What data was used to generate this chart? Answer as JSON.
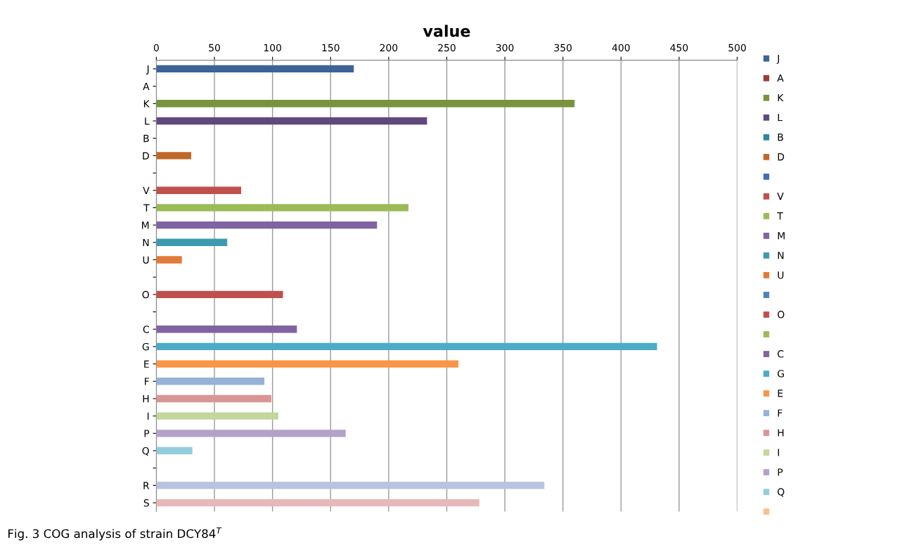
{
  "chart_data": {
    "type": "bar",
    "orientation": "horizontal",
    "title": "value",
    "categories": [
      "J",
      "A",
      "K",
      "L",
      "B",
      "D",
      null,
      "V",
      "T",
      "M",
      "N",
      "U",
      null,
      "O",
      null,
      "C",
      "G",
      "E",
      "F",
      "H",
      "I",
      "P",
      "Q",
      null,
      "R",
      "S"
    ],
    "series": [
      {
        "name": "J",
        "color": "#3c6496",
        "values": [
          170,
          null,
          null,
          null,
          null,
          null,
          null,
          null,
          null,
          null,
          null,
          null,
          null,
          null,
          null,
          null,
          null,
          null,
          null,
          null,
          null,
          null,
          null,
          null,
          null,
          null
        ]
      },
      {
        "name": "A",
        "color": "#9b3b38",
        "values": [
          null,
          0,
          null,
          null,
          null,
          null,
          null,
          null,
          null,
          null,
          null,
          null,
          null,
          null,
          null,
          null,
          null,
          null,
          null,
          null,
          null,
          null,
          null,
          null,
          null,
          null
        ]
      },
      {
        "name": "K",
        "color": "#77933c",
        "values": [
          null,
          null,
          360,
          null,
          null,
          null,
          null,
          null,
          null,
          null,
          null,
          null,
          null,
          null,
          null,
          null,
          null,
          null,
          null,
          null,
          null,
          null,
          null,
          null,
          null,
          null
        ]
      },
      {
        "name": "L",
        "color": "#604a7b",
        "values": [
          null,
          null,
          null,
          233,
          null,
          null,
          null,
          null,
          null,
          null,
          null,
          null,
          null,
          null,
          null,
          null,
          null,
          null,
          null,
          null,
          null,
          null,
          null,
          null,
          null,
          null
        ]
      },
      {
        "name": "B",
        "color": "#31859c",
        "values": [
          null,
          null,
          null,
          null,
          0,
          null,
          null,
          null,
          null,
          null,
          null,
          null,
          null,
          null,
          null,
          null,
          null,
          null,
          null,
          null,
          null,
          null,
          null,
          null,
          null,
          null
        ]
      },
      {
        "name": "D",
        "color": "#c0672a",
        "values": [
          null,
          null,
          null,
          null,
          null,
          30,
          null,
          null,
          null,
          null,
          null,
          null,
          null,
          null,
          null,
          null,
          null,
          null,
          null,
          null,
          null,
          null,
          null,
          null,
          null,
          null
        ]
      },
      {
        "color": "#3f6fb0",
        "values": [
          null,
          null,
          null,
          null,
          null,
          null,
          null,
          null,
          null,
          null,
          null,
          null,
          null,
          null,
          null,
          null,
          null,
          null,
          null,
          null,
          null,
          null,
          null,
          null,
          null,
          null
        ]
      },
      {
        "name": "V",
        "color": "#c0504d",
        "values": [
          null,
          null,
          null,
          null,
          null,
          null,
          null,
          73,
          null,
          null,
          null,
          null,
          null,
          null,
          null,
          null,
          null,
          null,
          null,
          null,
          null,
          null,
          null,
          null,
          null,
          null
        ]
      },
      {
        "name": "T",
        "color": "#9bbb59",
        "values": [
          null,
          null,
          null,
          null,
          null,
          null,
          null,
          null,
          217,
          null,
          null,
          null,
          null,
          null,
          null,
          null,
          null,
          null,
          null,
          null,
          null,
          null,
          null,
          null,
          null,
          null
        ]
      },
      {
        "name": "M",
        "color": "#8064a2",
        "values": [
          null,
          null,
          null,
          null,
          null,
          null,
          null,
          null,
          null,
          190,
          null,
          null,
          null,
          null,
          null,
          null,
          null,
          null,
          null,
          null,
          null,
          null,
          null,
          null,
          null,
          null
        ]
      },
      {
        "name": "N",
        "color": "#3d9bb0",
        "values": [
          null,
          null,
          null,
          null,
          null,
          null,
          null,
          null,
          null,
          null,
          61,
          null,
          null,
          null,
          null,
          null,
          null,
          null,
          null,
          null,
          null,
          null,
          null,
          null,
          null,
          null
        ]
      },
      {
        "name": "U",
        "color": "#e07b39",
        "values": [
          null,
          null,
          null,
          null,
          null,
          null,
          null,
          null,
          null,
          null,
          null,
          22,
          null,
          null,
          null,
          null,
          null,
          null,
          null,
          null,
          null,
          null,
          null,
          null,
          null,
          null
        ]
      },
      {
        "color": "#4f81bd",
        "values": [
          null,
          null,
          null,
          null,
          null,
          null,
          null,
          null,
          null,
          null,
          null,
          null,
          null,
          null,
          null,
          null,
          null,
          null,
          null,
          null,
          null,
          null,
          null,
          null,
          null,
          null
        ]
      },
      {
        "name": "O",
        "color": "#c0504d",
        "values": [
          null,
          null,
          null,
          null,
          null,
          null,
          null,
          null,
          null,
          null,
          null,
          null,
          null,
          109,
          null,
          null,
          null,
          null,
          null,
          null,
          null,
          null,
          null,
          null,
          null,
          null
        ]
      },
      {
        "color": "#9bbb59",
        "values": [
          null,
          null,
          null,
          null,
          null,
          null,
          null,
          null,
          null,
          null,
          null,
          null,
          null,
          null,
          null,
          null,
          null,
          null,
          null,
          null,
          null,
          null,
          null,
          null,
          null,
          null
        ]
      },
      {
        "name": "C",
        "color": "#8064a2",
        "values": [
          null,
          null,
          null,
          null,
          null,
          null,
          null,
          null,
          null,
          null,
          null,
          null,
          null,
          null,
          null,
          121,
          null,
          null,
          null,
          null,
          null,
          null,
          null,
          null,
          null,
          null
        ]
      },
      {
        "name": "G",
        "color": "#4bacc6",
        "values": [
          null,
          null,
          null,
          null,
          null,
          null,
          null,
          null,
          null,
          null,
          null,
          null,
          null,
          null,
          null,
          null,
          431,
          null,
          null,
          null,
          null,
          null,
          null,
          null,
          null,
          null
        ]
      },
      {
        "name": "E",
        "color": "#f79646",
        "values": [
          null,
          null,
          null,
          null,
          null,
          null,
          null,
          null,
          null,
          null,
          null,
          null,
          null,
          null,
          null,
          null,
          null,
          260,
          null,
          null,
          null,
          null,
          null,
          null,
          null,
          null
        ]
      },
      {
        "name": "F",
        "color": "#95b3d7",
        "values": [
          null,
          null,
          null,
          null,
          null,
          null,
          null,
          null,
          null,
          null,
          null,
          null,
          null,
          null,
          null,
          null,
          null,
          null,
          93,
          null,
          null,
          null,
          null,
          null,
          null,
          null
        ]
      },
      {
        "name": "H",
        "color": "#d99694",
        "values": [
          null,
          null,
          null,
          null,
          null,
          null,
          null,
          null,
          null,
          null,
          null,
          null,
          null,
          null,
          null,
          null,
          null,
          null,
          null,
          99,
          null,
          null,
          null,
          null,
          null,
          null
        ]
      },
      {
        "name": "I",
        "color": "#c3d69b",
        "values": [
          null,
          null,
          null,
          null,
          null,
          null,
          null,
          null,
          null,
          null,
          null,
          null,
          null,
          null,
          null,
          null,
          null,
          null,
          null,
          null,
          105,
          null,
          null,
          null,
          null,
          null
        ]
      },
      {
        "name": "P",
        "color": "#b3a2c7",
        "values": [
          null,
          null,
          null,
          null,
          null,
          null,
          null,
          null,
          null,
          null,
          null,
          null,
          null,
          null,
          null,
          null,
          null,
          null,
          null,
          null,
          null,
          163,
          null,
          null,
          null,
          null
        ]
      },
      {
        "name": "Q",
        "color": "#93cddd",
        "values": [
          null,
          null,
          null,
          null,
          null,
          null,
          null,
          null,
          null,
          null,
          null,
          null,
          null,
          null,
          null,
          null,
          null,
          null,
          null,
          null,
          null,
          null,
          31,
          null,
          null,
          null
        ]
      },
      {
        "color": "#fac090",
        "values": [
          null,
          null,
          null,
          null,
          null,
          null,
          null,
          null,
          null,
          null,
          null,
          null,
          null,
          null,
          null,
          null,
          null,
          null,
          null,
          null,
          null,
          null,
          null,
          null,
          null,
          null
        ]
      },
      {
        "color": "#b9c3df",
        "values": [
          null,
          null,
          null,
          null,
          null,
          null,
          null,
          null,
          null,
          null,
          null,
          null,
          null,
          null,
          null,
          null,
          null,
          null,
          null,
          null,
          null,
          null,
          null,
          null,
          334,
          null
        ]
      },
      {
        "color": "#e6b9b8",
        "values": [
          null,
          null,
          null,
          null,
          null,
          null,
          null,
          null,
          null,
          null,
          null,
          null,
          null,
          null,
          null,
          null,
          null,
          null,
          null,
          null,
          null,
          null,
          null,
          null,
          null,
          278
        ]
      }
    ],
    "xlim": [
      0,
      500
    ],
    "xticks": [
      0,
      50,
      100,
      150,
      200,
      250,
      300,
      350,
      400,
      450,
      500
    ],
    "grid": "x",
    "legend": "right",
    "annotations": [
      "Fig. 3 COG analysis of strain DCY84$^{T}$"
    ]
  }
}
